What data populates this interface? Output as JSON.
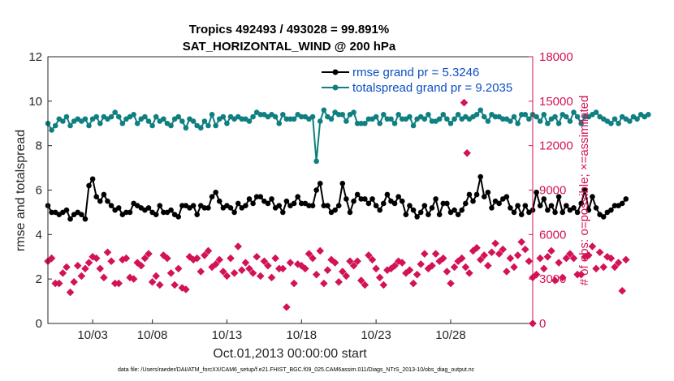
{
  "colors": {
    "rmse": "#000000",
    "spread": "#0f7f80",
    "obs": "#d31257",
    "legend_text": "#0b4fc4",
    "axis": "#262626"
  },
  "chart_data": {
    "type": "line",
    "title_line1": "Tropics 492493 / 493028 = 99.891%",
    "title_line2": "SAT_HORIZONTAL_WIND @ 200 hPa",
    "xlabel": "Oct.01,2013 00:00:00 start",
    "ylabel": "rmse and totalspread",
    "ylabel_right": "# of obs: o=possible; ×=assimilated",
    "footnote": "data file: /Users/raeder/DAI/ATM_forcXX/CAM6_setup/f.e21.FHIST_BGC.f09_025.CAM6assim.011/Diags_NTrS_2013-10/obs_diag_output.nc",
    "xlim": [
      1,
      33.5
    ],
    "ylim": [
      0,
      12
    ],
    "ylim_right": [
      0,
      18000
    ],
    "x_ticks": [
      4,
      8,
      13,
      18,
      23,
      28
    ],
    "x_tick_labels": [
      "10/03",
      "10/08",
      "10/13",
      "10/18",
      "10/23",
      "10/28"
    ],
    "y_ticks": [
      "0",
      "2",
      "4",
      "6",
      "8",
      "10",
      "12"
    ],
    "y_ticks_right": [
      "0",
      "3000",
      "6000",
      "9000",
      "12000",
      "15000",
      "18000"
    ],
    "x_start": 1.0,
    "x_step": 0.25,
    "series": [
      {
        "name": "rmse grand pr = 5.3246",
        "axis": "left",
        "style": "line-dot",
        "values": [
          5.3,
          5.0,
          5.0,
          4.9,
          5.0,
          5.1,
          4.7,
          4.9,
          5.0,
          4.9,
          4.7,
          6.2,
          6.5,
          5.7,
          5.5,
          5.8,
          5.5,
          5.3,
          5.1,
          5.2,
          4.9,
          5.0,
          5.0,
          5.4,
          5.3,
          5.2,
          5.1,
          5.2,
          5.0,
          4.9,
          5.3,
          5.0,
          5.0,
          5.1,
          4.9,
          4.8,
          5.3,
          5.3,
          5.2,
          5.3,
          4.9,
          5.3,
          5.2,
          5.2,
          5.7,
          5.9,
          5.5,
          5.2,
          5.3,
          5.2,
          5.0,
          5.4,
          5.2,
          5.3,
          5.6,
          5.4,
          5.7,
          5.7,
          5.5,
          5.4,
          5.6,
          5.2,
          5.3,
          5.0,
          5.5,
          5.3,
          5.4,
          5.7,
          5.4,
          5.4,
          5.3,
          5.3,
          6.0,
          6.3,
          5.3,
          5.3,
          5.0,
          5.1,
          5.3,
          6.3,
          5.6,
          5.0,
          5.5,
          5.8,
          5.6,
          5.6,
          5.4,
          5.6,
          5.3,
          5.1,
          5.4,
          5.8,
          5.5,
          5.4,
          5.7,
          5.5,
          4.9,
          5.3,
          5.1,
          4.8,
          5.0,
          5.3,
          4.9,
          5.2,
          5.6,
          4.9,
          5.4,
          5.4,
          5.0,
          5.1,
          4.9,
          5.1,
          5.4,
          5.8,
          5.5,
          5.8,
          6.6,
          5.7,
          5.9,
          5.2,
          5.5,
          5.4,
          5.6,
          5.7,
          5.2,
          5.0,
          5.3,
          4.9,
          5.3,
          5.0,
          5.1,
          5.9,
          5.3,
          5.6,
          5.1,
          5.3,
          5.0,
          5.7,
          5.0,
          5.3,
          5.1,
          5.2,
          5.0,
          5.4,
          6.0,
          5.1,
          5.7,
          5.2,
          4.9,
          4.8,
          5.0,
          5.1,
          5.3,
          5.3,
          5.4,
          5.6
        ]
      },
      {
        "name": "totalspread grand pr = 9.2035",
        "axis": "left",
        "style": "line-dot",
        "values": [
          9.0,
          8.7,
          8.9,
          9.2,
          9.1,
          9.3,
          8.9,
          9.1,
          9.2,
          9.1,
          9.2,
          8.9,
          9.2,
          9.3,
          9.0,
          9.3,
          9.2,
          9.3,
          9.5,
          9.3,
          9.0,
          9.2,
          9.3,
          9.4,
          9.0,
          9.2,
          9.3,
          9.1,
          8.9,
          9.3,
          9.1,
          9.2,
          9.0,
          8.9,
          9.2,
          9.3,
          9.1,
          8.8,
          9.2,
          9.1,
          8.9,
          8.8,
          9.1,
          8.9,
          9.4,
          8.9,
          9.2,
          9.3,
          9.0,
          9.3,
          9.2,
          9.3,
          9.2,
          9.2,
          9.1,
          9.3,
          9.5,
          9.4,
          9.4,
          9.3,
          9.4,
          9.3,
          9.0,
          9.4,
          9.2,
          9.2,
          9.2,
          9.4,
          9.3,
          9.3,
          9.2,
          9.3,
          7.3,
          9.1,
          9.6,
          9.3,
          9.2,
          9.5,
          9.4,
          9.4,
          9.1,
          9.4,
          9.5,
          9.0,
          9.0,
          9.0,
          9.2,
          9.2,
          9.3,
          9.0,
          9.4,
          9.2,
          9.2,
          9.0,
          9.4,
          9.2,
          9.2,
          9.3,
          8.9,
          9.2,
          9.3,
          9.2,
          9.4,
          9.1,
          9.1,
          9.2,
          9.4,
          9.2,
          9.0,
          9.2,
          9.4,
          9.2,
          9.3,
          9.2,
          9.3,
          9.4,
          9.6,
          9.3,
          9.1,
          9.4,
          9.3,
          9.3,
          9.2,
          9.2,
          9.1,
          9.3,
          9.0,
          9.4,
          9.4,
          9.2,
          9.4,
          9.3,
          9.1,
          9.4,
          9.0,
          9.2,
          9.3,
          9.0,
          9.4,
          9.3,
          9.1,
          9.5,
          9.3,
          9.0,
          9.3,
          9.3,
          9.4,
          9.5,
          9.3,
          9.2,
          9.1,
          9.0,
          9.2,
          9.0,
          9.3,
          9.2,
          9.1,
          9.3,
          9.2,
          9.4,
          9.3,
          9.4
        ]
      },
      {
        "name": "possible",
        "axis": "right",
        "style": "marker",
        "values": [
          4200,
          4400,
          2700,
          2700,
          3400,
          3800,
          2100,
          2800,
          3900,
          3200,
          3700,
          4100,
          4500,
          4400,
          3700,
          3100,
          4800,
          4200,
          2700,
          2700,
          4300,
          4400,
          3100,
          3000,
          4100,
          3900,
          4400,
          4700,
          2800,
          3200,
          2600,
          4600,
          4400,
          3400,
          2600,
          3700,
          2400,
          2300,
          4500,
          4300,
          4400,
          3500,
          4600,
          4900,
          3800,
          4000,
          4300,
          3500,
          3200,
          4400,
          3400,
          5200,
          3600,
          4100,
          3700,
          3400,
          4500,
          3200,
          4200,
          3900,
          3100,
          4400,
          3700,
          3700,
          1100,
          4100,
          2700,
          4000,
          3900,
          3700,
          4700,
          4400,
          3300,
          4900,
          2700,
          3600,
          4300,
          4100,
          2800,
          3500,
          3200,
          4200,
          3900,
          4200,
          2900,
          2600,
          4600,
          4300,
          3700,
          3100,
          2600,
          3600,
          3700,
          3900,
          4200,
          4100,
          3400,
          3600,
          2700,
          3300,
          4000,
          4700,
          3700,
          3900,
          4700,
          4200,
          4400,
          3500,
          2700,
          3800,
          4200,
          4400,
          3800,
          3400,
          4900,
          5100,
          4300,
          4600,
          3900,
          4800,
          5400,
          4700,
          5000,
          3500,
          4400,
          3800,
          4600,
          5500,
          5000,
          4200,
          3100,
          3300,
          4400,
          3700,
          4500,
          4900,
          2900,
          4100,
          3100,
          4400,
          4700,
          4400,
          3300,
          3300,
          4500,
          4600,
          5200,
          3700,
          4800,
          3800,
          4500,
          4400,
          3800,
          4100,
          2200,
          4300
        ]
      }
    ],
    "outliers": [
      {
        "x": 28.9,
        "value": 14900,
        "axis": "right"
      },
      {
        "x": 29.1,
        "value": 11500,
        "axis": "right"
      },
      {
        "x": 33.5,
        "value": 0,
        "axis": "right"
      }
    ]
  }
}
